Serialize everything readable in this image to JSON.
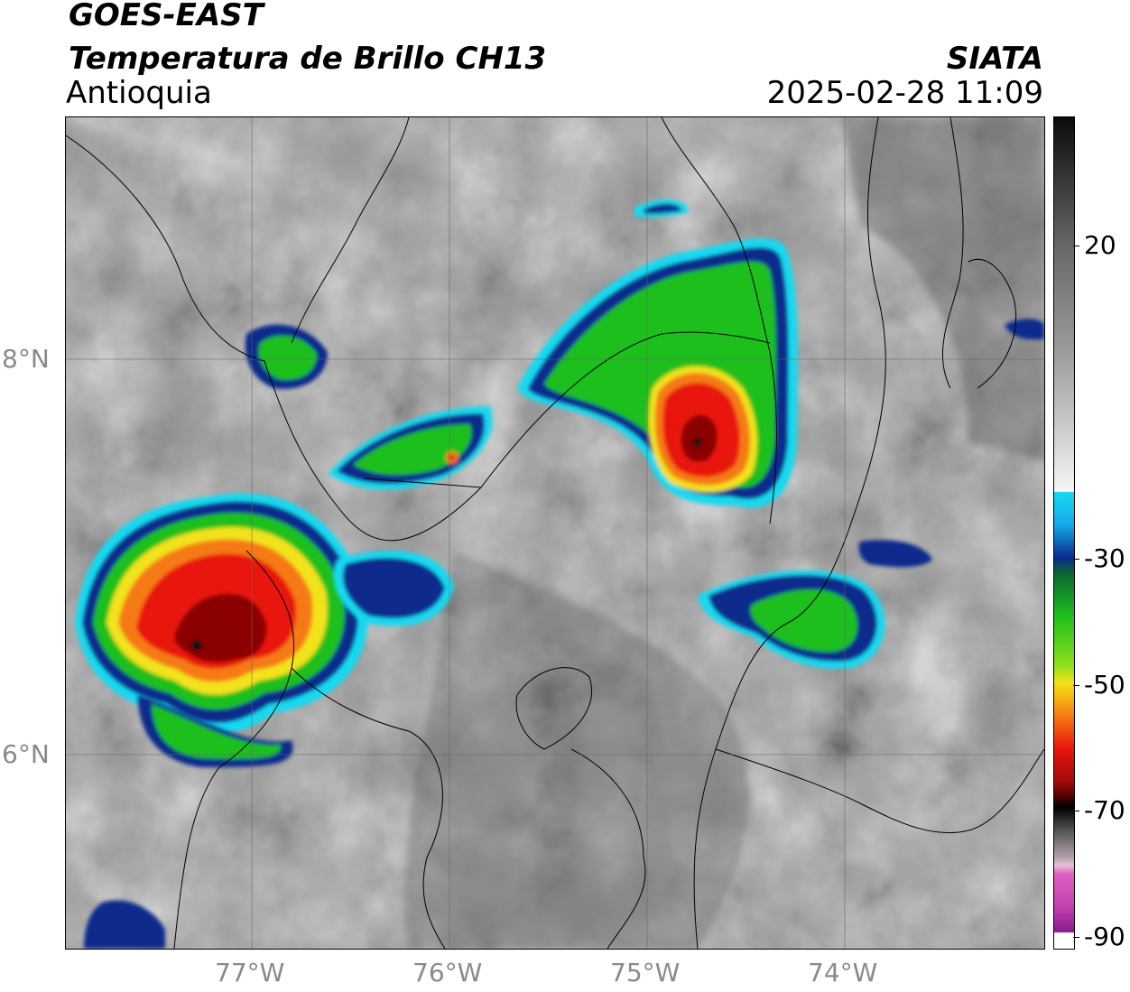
{
  "header": {
    "satellite": "GOES-EAST",
    "product": "Temperatura de Brillo CH13",
    "region": "Antioquia",
    "organization": "SIATA",
    "datetime": "2025-02-28 11:09"
  },
  "map": {
    "latitude_labels": [
      "8°N",
      "6°N"
    ],
    "longitude_labels": [
      "77°W",
      "76°W",
      "75°W",
      "74°W"
    ],
    "colors": {
      "cold_top_core": "#8b0000",
      "convective_red": "#e8140c",
      "orange": "#f57a12",
      "yellow": "#f2e21a",
      "green": "#1fbf1c",
      "dark_blue": "#0a2a8c",
      "cyan": "#18d9f0"
    }
  },
  "colorbar": {
    "labels": [
      "20",
      "-30",
      "-50",
      "-70",
      "-90"
    ]
  }
}
